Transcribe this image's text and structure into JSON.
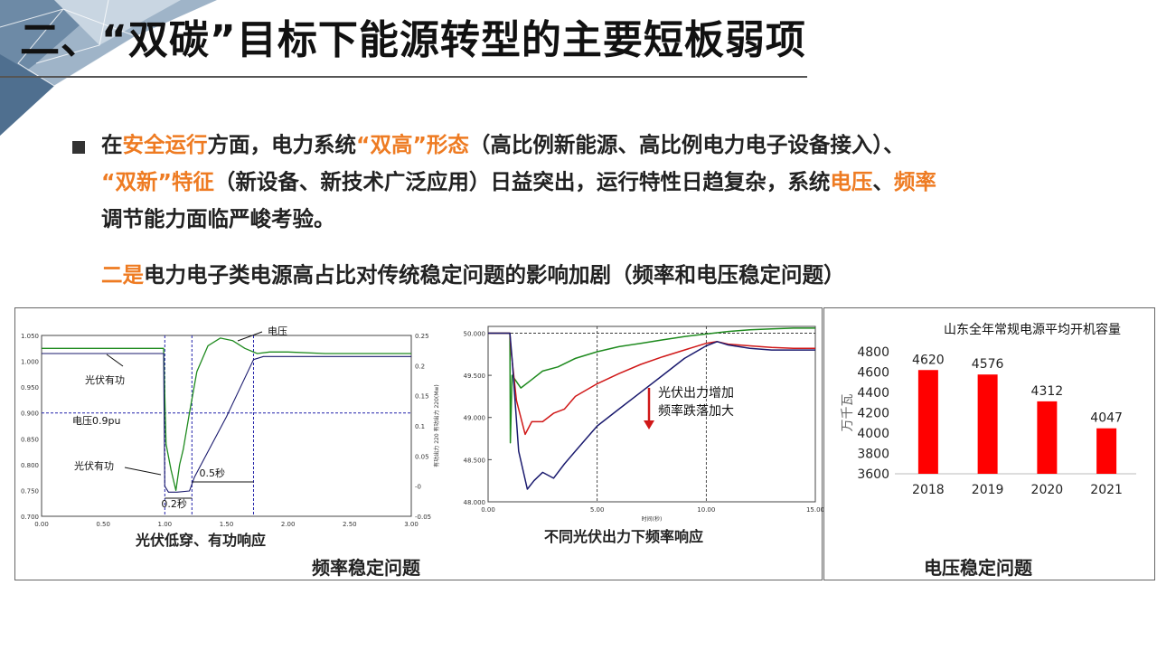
{
  "title": "二、“双碳”目标下能源转型的主要短板弱项",
  "paragraph": {
    "p1": "在",
    "p2": "安全运行",
    "p3": "方面，电力系统",
    "p4": "“双高”形态",
    "p5": "（高比例新能源、高比例电力电子设备接入）、",
    "p6": "“双新”特征",
    "p7": "（新设备、新技术广泛应用）日益突出，运行特性日趋复杂，系统",
    "p8": "电压",
    "p9": "、",
    "p10": "频率",
    "p11": "调节能力面临严峻考验。"
  },
  "point2": {
    "lead": "二是",
    "text": "电力电子类电源高占比对传统稳定问题的影响加剧（频率和电压稳定问题）"
  },
  "colors": {
    "accent": "#ee7b22",
    "bar": "#ff0000",
    "green": "#1e8a1e",
    "navy": "#1a1a6e",
    "red": "#d01818",
    "dash": "#2222aa"
  },
  "panel_freq": {
    "caption": "频率稳定问题"
  },
  "panel_volt": {
    "caption": "电压稳定问题"
  },
  "chart_data": [
    {
      "type": "line",
      "subtitle": "光伏低穿、有功响应",
      "x_ticks": [
        "0.00",
        "0.50",
        "1.00",
        "1.50",
        "2.00",
        "2.50",
        "3.00"
      ],
      "xlim": [
        0,
        3
      ],
      "y_left_ticks": [
        "0.700",
        "0.750",
        "0.800",
        "0.850",
        "0.900",
        "0.950",
        "1.000",
        "1.050"
      ],
      "ylim_left": [
        0.7,
        1.05
      ],
      "y_right_ticks": [
        "-0.05",
        "-0",
        "0.05",
        "0.1",
        "0.15",
        "0.2",
        "0.25"
      ],
      "ylim_right": [
        -0.05,
        0.25
      ],
      "y_right_label": "有功出力 220 有功出力 220(Mw)",
      "annotations": {
        "voltage": "电压",
        "pv_power_top": "光伏有功",
        "threshold": "电压0.9pu",
        "pv_power_bottom": "光伏有功",
        "t1": "0.2秒",
        "t2": "0.5秒"
      },
      "series": [
        {
          "name": "电压",
          "x": [
            0,
            0.99,
            1.01,
            1.05,
            1.09,
            1.12,
            1.15,
            1.2,
            1.26,
            1.35,
            1.45,
            1.55,
            1.65,
            1.75,
            1.85,
            2.0,
            2.3,
            2.6,
            3.0
          ],
          "y": [
            1.025,
            1.025,
            0.84,
            0.79,
            0.75,
            0.8,
            0.83,
            0.9,
            0.98,
            1.03,
            1.045,
            1.04,
            1.025,
            1.015,
            1.018,
            1.018,
            1.015,
            1.015,
            1.015
          ]
        },
        {
          "name": "光伏有功",
          "x": [
            0,
            0.99,
            1.0,
            1.03,
            1.1,
            1.2,
            1.24,
            1.5,
            1.72,
            1.8,
            2.0,
            2.5,
            3.0
          ],
          "y": [
            0.22,
            0.22,
            -0.0,
            -0.01,
            -0.01,
            -0.008,
            0.015,
            0.115,
            0.21,
            0.215,
            0.215,
            0.215,
            0.215
          ]
        }
      ],
      "hline": 0.9,
      "vlines": [
        1.0,
        1.22,
        1.72
      ]
    },
    {
      "type": "line",
      "subtitle": "不同光伏出力下频率响应",
      "x_ticks": [
        "0.00",
        "5.00",
        "10.00",
        "15.00"
      ],
      "xlim": [
        0,
        15
      ],
      "y_ticks": [
        "48.000",
        "48.500",
        "49.000",
        "49.500",
        "50.000"
      ],
      "ylim": [
        48,
        50.08
      ],
      "xlabel": "时间(秒)",
      "annotation": "光伏出力增加\n频率跌落加大",
      "series": [
        {
          "name": "green",
          "x": [
            0,
            1,
            1.02,
            1.1,
            1.5,
            2,
            2.5,
            3.2,
            4,
            5,
            6,
            7,
            8,
            9,
            10,
            11,
            12,
            13,
            14,
            15
          ],
          "y": [
            50,
            50,
            48.7,
            49.5,
            49.35,
            49.45,
            49.55,
            49.6,
            49.7,
            49.78,
            49.84,
            49.88,
            49.92,
            49.96,
            49.99,
            50.02,
            50.04,
            50.05,
            50.06,
            50.06
          ]
        },
        {
          "name": "red",
          "x": [
            0,
            1,
            1.05,
            1.3,
            1.7,
            2,
            2.5,
            3,
            3.5,
            4,
            5,
            6,
            7,
            8,
            9,
            10,
            10.5,
            11,
            12,
            13,
            14,
            15
          ],
          "y": [
            50,
            50,
            49.8,
            49.2,
            48.8,
            48.95,
            48.95,
            49.05,
            49.1,
            49.25,
            49.4,
            49.52,
            49.63,
            49.72,
            49.8,
            49.88,
            49.9,
            49.87,
            49.85,
            49.83,
            49.82,
            49.82
          ]
        },
        {
          "name": "navy",
          "x": [
            0,
            1,
            1.1,
            1.4,
            1.8,
            2.1,
            2.5,
            3,
            3.5,
            4,
            4.5,
            5,
            6,
            7,
            8,
            9,
            10,
            10.5,
            11,
            12,
            13,
            14,
            15
          ],
          "y": [
            50,
            50,
            49.7,
            48.6,
            48.15,
            48.25,
            48.35,
            48.28,
            48.45,
            48.6,
            48.75,
            48.9,
            49.1,
            49.3,
            49.5,
            49.7,
            49.85,
            49.9,
            49.86,
            49.82,
            49.8,
            49.8,
            49.8
          ]
        }
      ],
      "vlines": [
        5,
        10
      ]
    },
    {
      "type": "bar",
      "title": "山东全年常规电源平均开机容量",
      "ylabel": "万千瓦",
      "categories": [
        "2018",
        "2019",
        "2020",
        "2021"
      ],
      "values": [
        4620,
        4576,
        4312,
        4047
      ],
      "ylim": [
        3600,
        4800
      ],
      "y_ticks": [
        "3600",
        "3800",
        "4000",
        "4200",
        "4400",
        "4600",
        "4800"
      ]
    }
  ]
}
